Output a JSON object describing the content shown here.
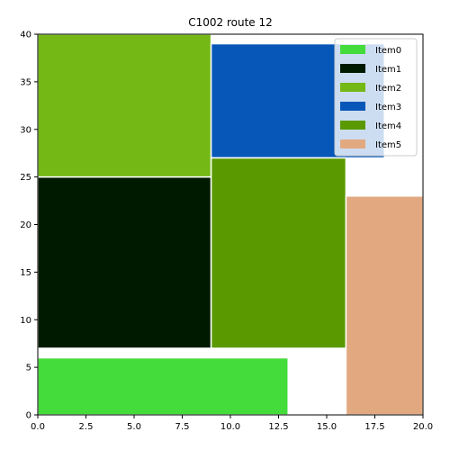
{
  "chart_data": {
    "type": "packing",
    "title": "C1002 route 12",
    "xlim": [
      0,
      20
    ],
    "ylim": [
      0,
      40
    ],
    "xticks": [
      "0.0",
      "2.5",
      "5.0",
      "7.5",
      "10.0",
      "12.5",
      "15.0",
      "17.5",
      "20.0"
    ],
    "yticks": [
      "0",
      "5",
      "10",
      "15",
      "20",
      "25",
      "30",
      "35",
      "40"
    ],
    "legend_position": "top-right",
    "grid": false,
    "items": [
      {
        "name": "Item0",
        "color": "#43dc3a",
        "x": 0,
        "y": 0,
        "w": 13,
        "h": 6
      },
      {
        "name": "Item1",
        "color": "#001a00",
        "x": 0,
        "y": 7,
        "w": 9,
        "h": 18
      },
      {
        "name": "Item2",
        "color": "#74b815",
        "x": 0,
        "y": 25,
        "w": 9,
        "h": 15
      },
      {
        "name": "Item3",
        "color": "#0657b8",
        "x": 9,
        "y": 27,
        "w": 9,
        "h": 12
      },
      {
        "name": "Item4",
        "color": "#5a9a00",
        "x": 9,
        "y": 7,
        "w": 7,
        "h": 20
      },
      {
        "name": "Item5",
        "color": "#e2a981",
        "x": 16,
        "y": 0,
        "w": 4,
        "h": 23
      }
    ]
  }
}
